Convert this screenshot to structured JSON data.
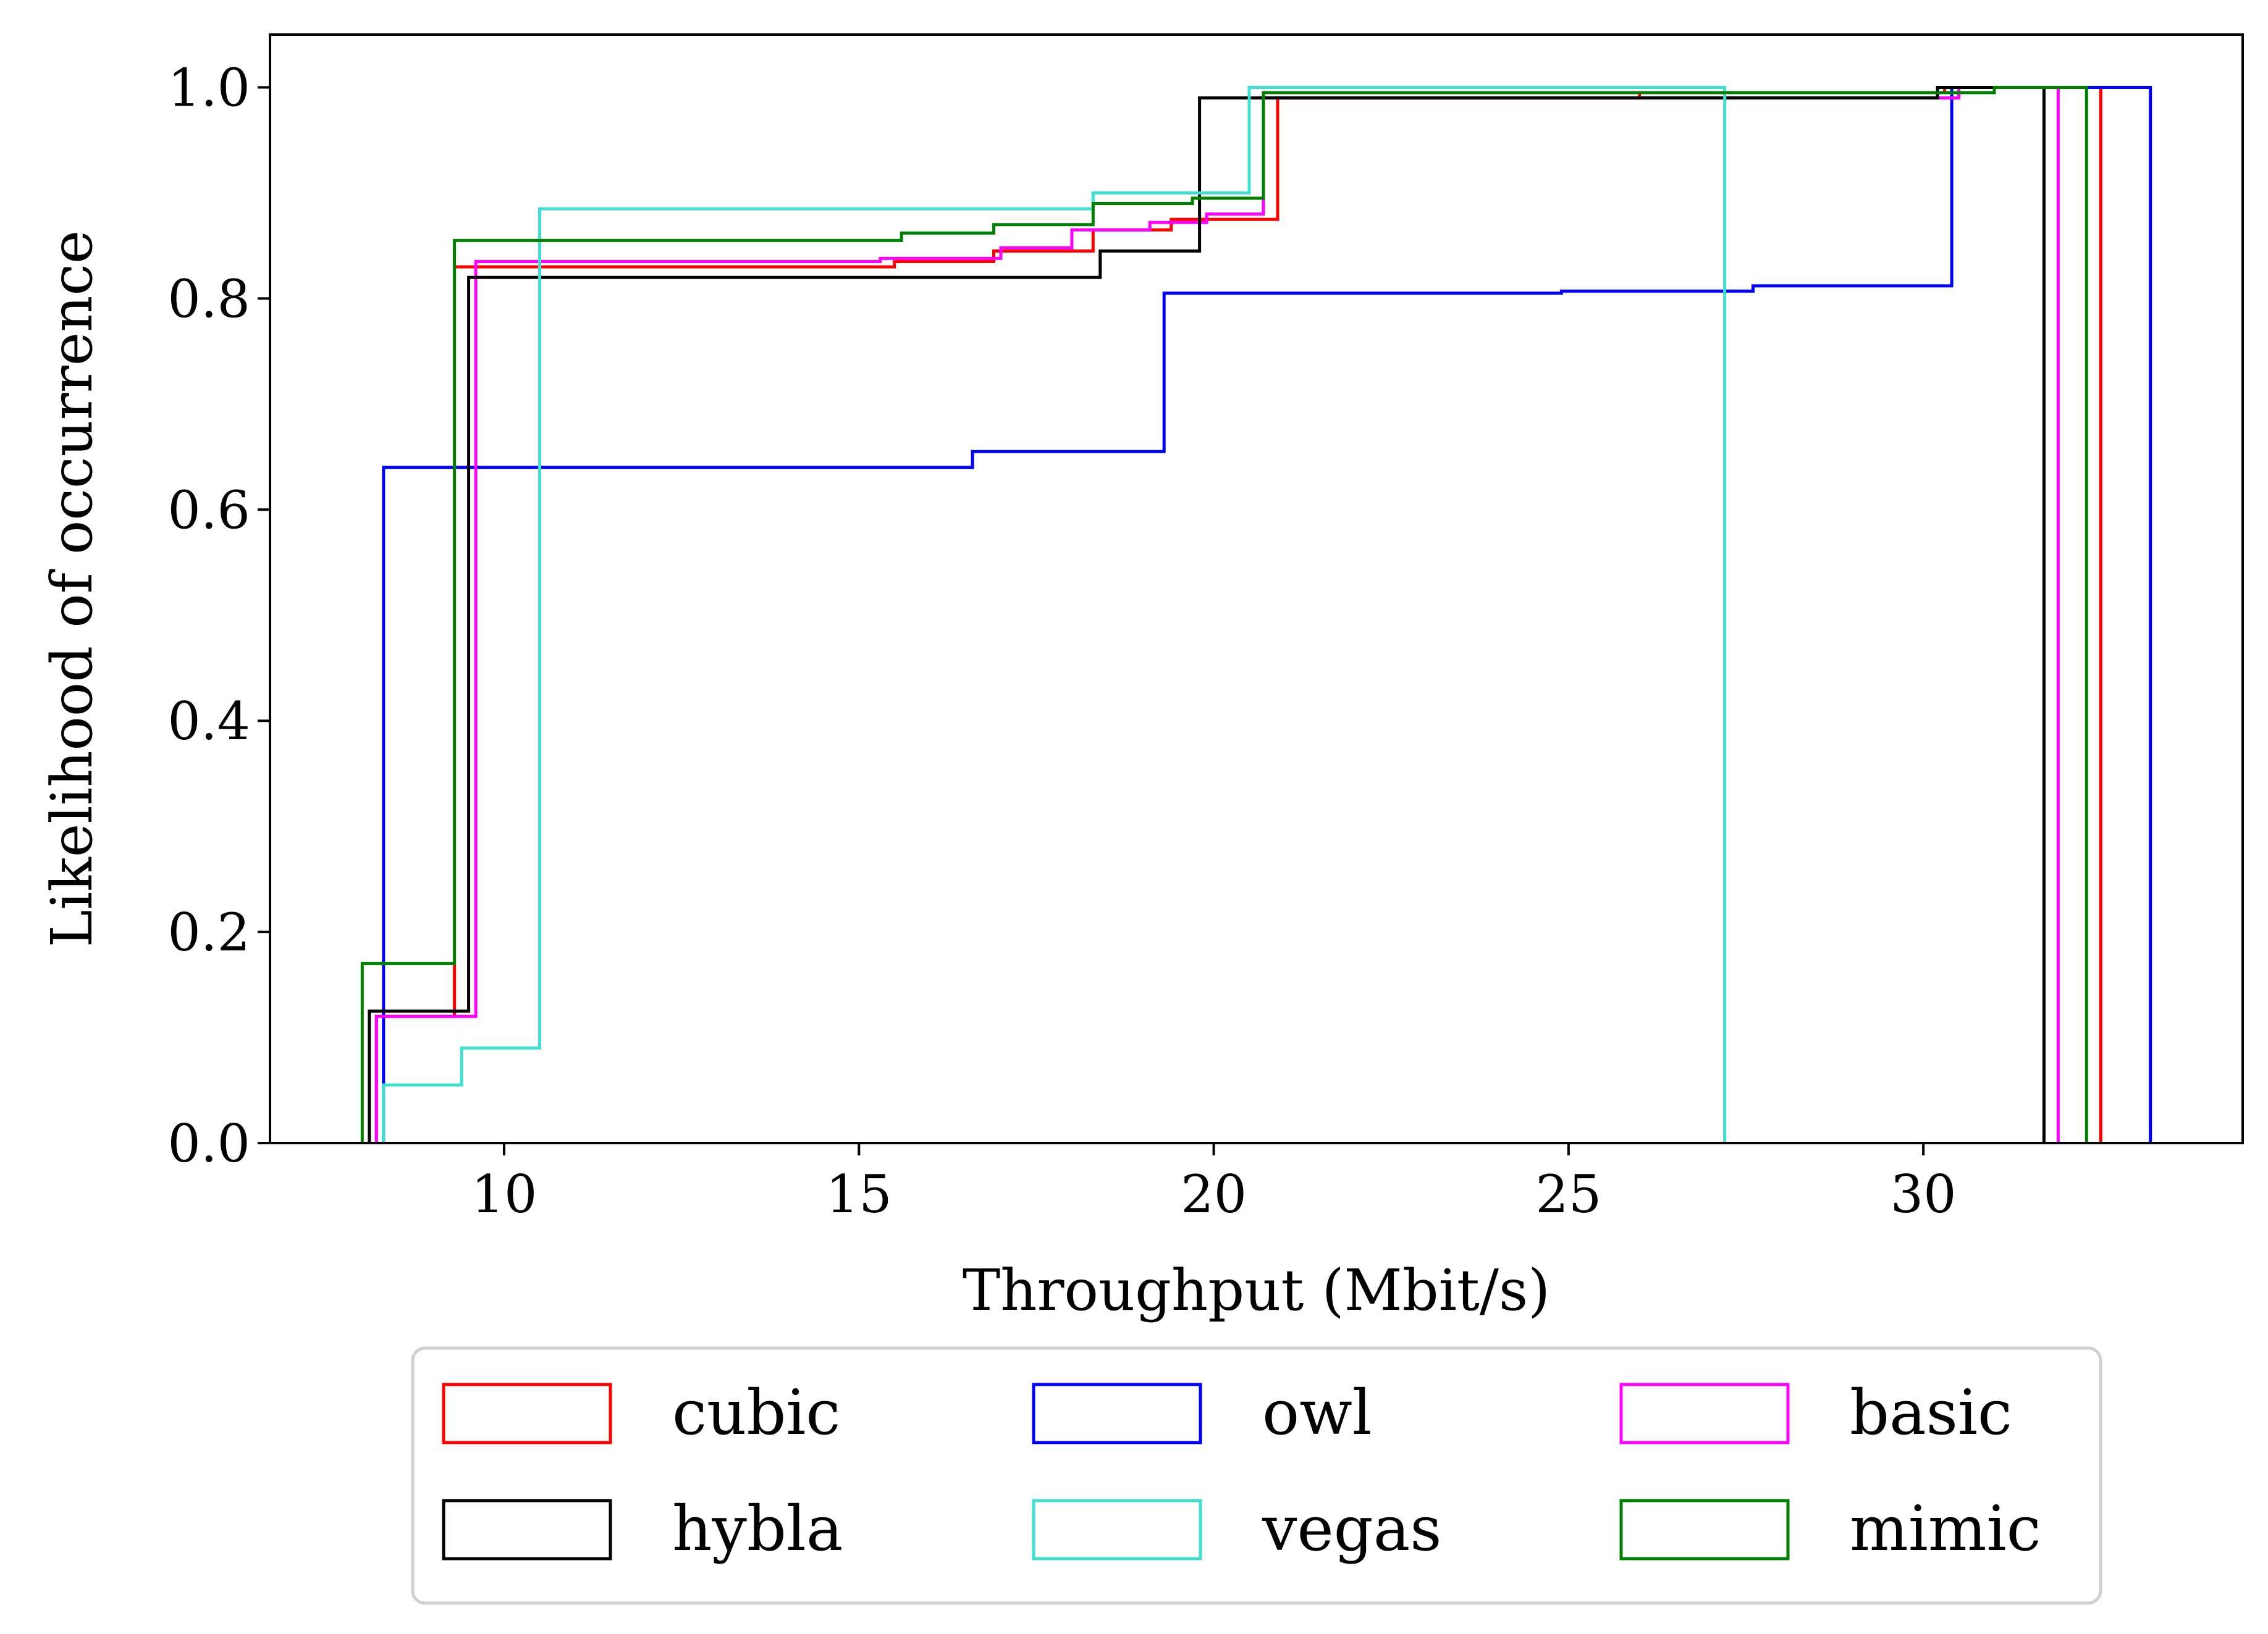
{
  "chart_data": {
    "type": "line",
    "subtype": "step-cdf",
    "title": "",
    "xlabel": "Throughput (Mbit/s)",
    "ylabel": "Likelihood of occurrence",
    "xlim": [
      6.7,
      34.5
    ],
    "ylim": [
      0.0,
      1.05
    ],
    "xticks": [
      10,
      15,
      20,
      25,
      30
    ],
    "xtick_labels": [
      "10",
      "15",
      "20",
      "25",
      "30"
    ],
    "yticks": [
      0.0,
      0.2,
      0.4,
      0.6,
      0.8,
      1.0
    ],
    "ytick_labels": [
      "0.0",
      "0.2",
      "0.4",
      "0.6",
      "0.8",
      "1.0"
    ],
    "grid": false,
    "legend": {
      "position": "below-plot",
      "columns": 3
    },
    "series": [
      {
        "name": "cubic",
        "color": "#ff0000",
        "points": [
          [
            8.2,
            0
          ],
          [
            8.2,
            0.12
          ],
          [
            9.3,
            0.12
          ],
          [
            9.3,
            0.83
          ],
          [
            15.5,
            0.83
          ],
          [
            15.5,
            0.835
          ],
          [
            16.9,
            0.835
          ],
          [
            16.9,
            0.845
          ],
          [
            18.3,
            0.845
          ],
          [
            18.3,
            0.865
          ],
          [
            19.4,
            0.865
          ],
          [
            19.4,
            0.875
          ],
          [
            20.9,
            0.875
          ],
          [
            20.9,
            0.99
          ],
          [
            26.0,
            0.99
          ],
          [
            26.0,
            0.995
          ],
          [
            30.3,
            0.995
          ],
          [
            30.3,
            1.0
          ],
          [
            32.5,
            1.0
          ],
          [
            32.5,
            0
          ]
        ]
      },
      {
        "name": "owl",
        "color": "#0000ff",
        "points": [
          [
            8.3,
            0
          ],
          [
            8.3,
            0.64
          ],
          [
            16.6,
            0.64
          ],
          [
            16.6,
            0.655
          ],
          [
            19.3,
            0.655
          ],
          [
            19.3,
            0.805
          ],
          [
            24.9,
            0.805
          ],
          [
            24.9,
            0.807
          ],
          [
            27.6,
            0.807
          ],
          [
            27.6,
            0.812
          ],
          [
            30.4,
            0.812
          ],
          [
            30.4,
            1.0
          ],
          [
            33.2,
            1.0
          ],
          [
            33.2,
            0
          ]
        ]
      },
      {
        "name": "basic",
        "color": "#ff00ff",
        "points": [
          [
            8.2,
            0
          ],
          [
            8.2,
            0.12
          ],
          [
            9.6,
            0.12
          ],
          [
            9.6,
            0.835
          ],
          [
            15.3,
            0.835
          ],
          [
            15.3,
            0.838
          ],
          [
            17.0,
            0.838
          ],
          [
            17.0,
            0.848
          ],
          [
            18.0,
            0.848
          ],
          [
            18.0,
            0.865
          ],
          [
            19.1,
            0.865
          ],
          [
            19.1,
            0.872
          ],
          [
            19.9,
            0.872
          ],
          [
            19.9,
            0.88
          ],
          [
            20.7,
            0.88
          ],
          [
            20.7,
            0.99
          ],
          [
            30.5,
            0.99
          ],
          [
            30.5,
            1.0
          ],
          [
            31.9,
            1.0
          ],
          [
            31.9,
            0
          ]
        ]
      },
      {
        "name": "hybla",
        "color": "#000000",
        "points": [
          [
            8.1,
            0
          ],
          [
            8.1,
            0.125
          ],
          [
            9.5,
            0.125
          ],
          [
            9.5,
            0.82
          ],
          [
            18.4,
            0.82
          ],
          [
            18.4,
            0.845
          ],
          [
            19.8,
            0.845
          ],
          [
            19.8,
            0.99
          ],
          [
            30.2,
            0.99
          ],
          [
            30.2,
            1.0
          ],
          [
            31.7,
            1.0
          ],
          [
            31.7,
            0
          ]
        ]
      },
      {
        "name": "vegas",
        "color": "#40e0d0",
        "points": [
          [
            8.3,
            0
          ],
          [
            8.3,
            0.055
          ],
          [
            9.4,
            0.055
          ],
          [
            9.4,
            0.09
          ],
          [
            10.5,
            0.09
          ],
          [
            10.5,
            0.885
          ],
          [
            18.3,
            0.885
          ],
          [
            18.3,
            0.9
          ],
          [
            20.5,
            0.9
          ],
          [
            20.5,
            1.0
          ],
          [
            27.2,
            1.0
          ],
          [
            27.2,
            0
          ]
        ]
      },
      {
        "name": "mimic",
        "color": "#008000",
        "points": [
          [
            8.0,
            0
          ],
          [
            8.0,
            0.17
          ],
          [
            9.3,
            0.17
          ],
          [
            9.3,
            0.855
          ],
          [
            15.6,
            0.855
          ],
          [
            15.6,
            0.862
          ],
          [
            16.9,
            0.862
          ],
          [
            16.9,
            0.87
          ],
          [
            18.3,
            0.87
          ],
          [
            18.3,
            0.89
          ],
          [
            19.7,
            0.89
          ],
          [
            19.7,
            0.895
          ],
          [
            20.7,
            0.895
          ],
          [
            20.7,
            0.995
          ],
          [
            31.0,
            0.995
          ],
          [
            31.0,
            1.0
          ],
          [
            32.3,
            1.0
          ],
          [
            32.3,
            0
          ]
        ]
      }
    ],
    "legend_layout": [
      [
        "cubic",
        "owl",
        "basic"
      ],
      [
        "hybla",
        "vegas",
        "mimic"
      ]
    ]
  }
}
